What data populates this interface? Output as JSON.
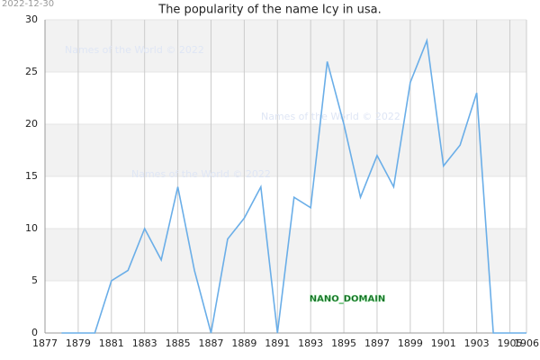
{
  "chart_data": {
    "type": "line",
    "title": "The popularity of the name Icy in usa.",
    "date": "2022-12-30",
    "watermarks": [
      "Names of the World © 2022",
      "Names of the World © 2022",
      "Names of the World © 2022"
    ],
    "badge": "NANO_DOMAIN",
    "x": [
      1878,
      1879,
      1880,
      1881,
      1882,
      1883,
      1884,
      1885,
      1886,
      1887,
      1888,
      1889,
      1890,
      1891,
      1892,
      1893,
      1894,
      1895,
      1896,
      1897,
      1898,
      1899,
      1900,
      1901,
      1902,
      1903,
      1904,
      1905,
      1906
    ],
    "values": [
      0,
      0,
      0,
      5,
      6,
      10,
      7,
      14,
      6,
      0,
      9,
      11,
      14,
      0,
      13,
      12,
      26,
      20,
      13,
      17,
      14,
      24,
      28,
      16,
      18,
      23,
      0,
      0,
      0
    ],
    "color": "#6aaee8",
    "xlim": [
      1877,
      1906
    ],
    "xticks": [
      1877,
      1879,
      1881,
      1883,
      1885,
      1887,
      1889,
      1891,
      1893,
      1895,
      1897,
      1899,
      1901,
      1903,
      1905,
      1906
    ],
    "ylim": [
      0,
      30
    ],
    "yticks": [
      0,
      5,
      10,
      15,
      20,
      25,
      30
    ],
    "grid": true
  }
}
